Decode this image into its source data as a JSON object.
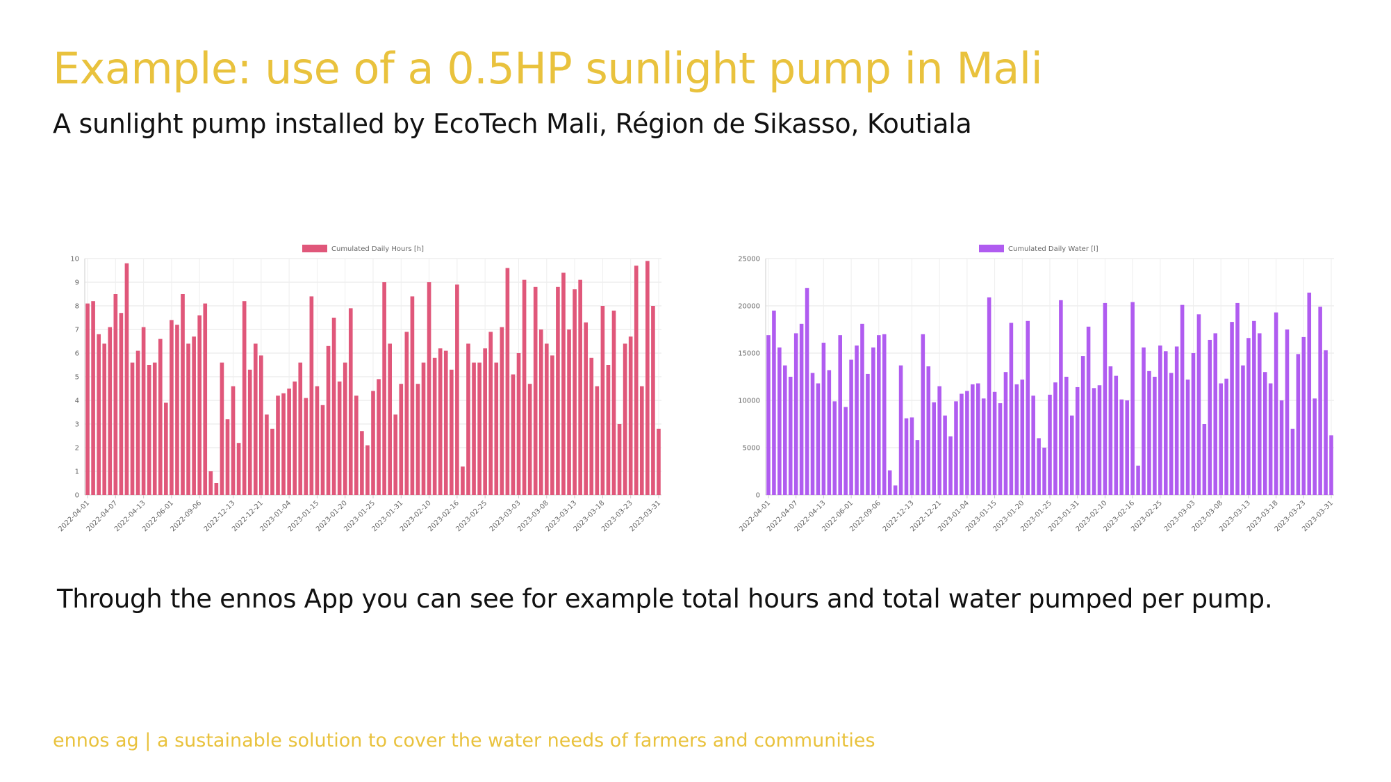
{
  "slide": {
    "title": "Example: use of a 0.5HP sunlight pump in Mali",
    "subtitle": "A sunlight pump installed by EcoTech Mali, Région de Sikasso, Koutiala",
    "caption": "Through the ennos App you can see for example total hours and total water pumped per pump.",
    "footer": "ennos ag | a sustainable solution to cover the water needs of farmers and communities"
  },
  "chart_data": [
    {
      "type": "bar",
      "title": "",
      "xlabel": "",
      "ylabel": "",
      "legend": "top-center",
      "grid": true,
      "color": "#E0577A",
      "ylim": [
        0,
        10
      ],
      "yticks": [
        0,
        1,
        2,
        3,
        4,
        5,
        6,
        7,
        8,
        9,
        10
      ],
      "xtick_labels": [
        "2022-04-01",
        "2022-04-07",
        "2022-04-13",
        "2022-06-01",
        "2022-09-06",
        "2022-12-13",
        "2022-12-21",
        "2023-01-04",
        "2023-01-15",
        "2023-01-20",
        "2023-01-25",
        "2023-01-31",
        "2023-02-10",
        "2023-02-16",
        "2023-02-25",
        "2023-03-03",
        "2023-03-08",
        "2023-03-13",
        "2023-03-18",
        "2023-03-23",
        "2023-03-31"
      ],
      "series": [
        {
          "name": "Cumulated Daily Hours [h]",
          "values": [
            8.1,
            8.2,
            6.8,
            6.4,
            7.1,
            8.5,
            7.7,
            9.8,
            5.6,
            6.1,
            7.1,
            5.5,
            5.6,
            6.6,
            3.9,
            7.4,
            7.2,
            8.5,
            6.4,
            6.7,
            7.6,
            8.1,
            1.0,
            0.5,
            5.6,
            3.2,
            4.6,
            2.2,
            8.2,
            5.3,
            6.4,
            5.9,
            3.4,
            2.8,
            4.2,
            4.3,
            4.5,
            4.8,
            5.6,
            4.1,
            8.4,
            4.6,
            3.8,
            6.3,
            7.5,
            4.8,
            5.6,
            7.9,
            4.2,
            2.7,
            2.1,
            4.4,
            4.9,
            9.0,
            6.4,
            3.4,
            4.7,
            6.9,
            8.4,
            4.7,
            5.6,
            9.0,
            5.8,
            6.2,
            6.1,
            5.3,
            8.9,
            1.2,
            6.4,
            5.6,
            5.6,
            6.2,
            6.9,
            5.6,
            7.1,
            9.6,
            5.1,
            6.0,
            9.1,
            4.7,
            8.8,
            7.0,
            6.4,
            5.9,
            8.8,
            9.4,
            7.0,
            8.7,
            9.1,
            7.3,
            5.8,
            4.6,
            8.0,
            5.5,
            7.8,
            3.0,
            6.4,
            6.7,
            9.7,
            4.6,
            9.9,
            8.0,
            2.8
          ]
        }
      ]
    },
    {
      "type": "bar",
      "title": "",
      "xlabel": "",
      "ylabel": "",
      "legend": "top-center",
      "grid": true,
      "color": "#B05CF0",
      "ylim": [
        0,
        25000
      ],
      "yticks": [
        0,
        5000,
        10000,
        15000,
        20000,
        25000
      ],
      "xtick_labels": [
        "2022-04-01",
        "2022-04-07",
        "2022-04-13",
        "2022-06-01",
        "2022-09-06",
        "2022-12-13",
        "2022-12-21",
        "2023-01-04",
        "2023-01-15",
        "2023-01-20",
        "2023-01-25",
        "2023-01-31",
        "2023-02-10",
        "2023-02-16",
        "2023-02-25",
        "2023-03-03",
        "2023-03-08",
        "2023-03-13",
        "2023-03-18",
        "2023-03-23",
        "2023-03-31"
      ],
      "series": [
        {
          "name": "Cumulated Daily Water [l]",
          "values": [
            16900,
            19500,
            15600,
            13700,
            12500,
            17100,
            18100,
            21900,
            12900,
            11800,
            16100,
            13200,
            9900,
            16900,
            9300,
            14300,
            15800,
            18100,
            12800,
            15600,
            16900,
            17000,
            2600,
            1000,
            13700,
            8100,
            8200,
            5800,
            17000,
            13600,
            9800,
            11500,
            8400,
            6200,
            9900,
            10700,
            11000,
            11700,
            11800,
            10200,
            20900,
            10900,
            9700,
            13000,
            18200,
            11700,
            12200,
            18400,
            10500,
            6000,
            5000,
            10600,
            11900,
            20600,
            12500,
            8400,
            11400,
            14700,
            17800,
            11300,
            11600,
            20300,
            13600,
            12600,
            10100,
            10000,
            20400,
            3100,
            15600,
            13100,
            12500,
            15800,
            15200,
            12900,
            15700,
            20100,
            12200,
            15000,
            19100,
            7500,
            16400,
            17100,
            11800,
            12300,
            18300,
            20300,
            13700,
            16600,
            18400,
            17100,
            13000,
            11800,
            19300,
            10000,
            17500,
            7000,
            14900,
            16700,
            21400,
            10200,
            19900,
            15300,
            6300
          ]
        }
      ]
    }
  ]
}
